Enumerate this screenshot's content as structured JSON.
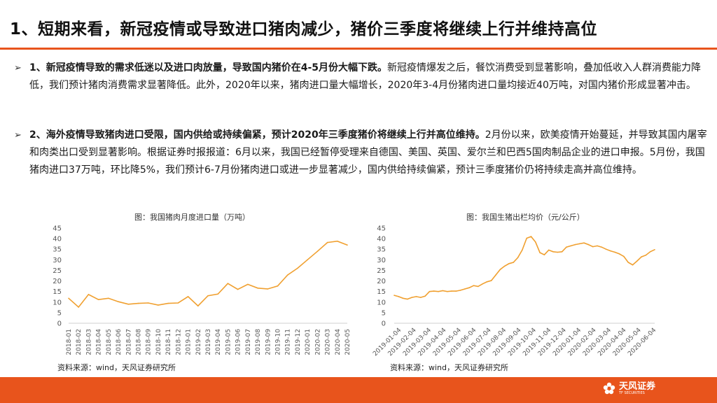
{
  "slide": {
    "title": "1、短期来看，新冠疫情或导致进口猪肉减少，猪价三季度将继续上行并维持高位",
    "bullets": [
      {
        "bold": "1、新冠疫情导致的需求低迷以及进口肉放量，导致国内猪价在4-5月份大幅下跌。",
        "text": "新冠疫情爆发之后，餐饮消费受到显著影响，叠加低收入人群消费能力降低，我们预计猪肉消费需求显著降低。此外，2020年以来，猪肉进口量大幅增长，2020年3-4月份猪肉进口量均接近40万吨，对国内猪价形成显著冲击。"
      },
      {
        "bold": "2、海外疫情导致猪肉进口受限，国内供给或持续偏紧，预计2020年三季度猪价将继续上行并高位维持。",
        "text": "2月份以来，欧美疫情开始蔓延，并导致其国内屠宰和肉类出口受到显著影响。根据证券时报报道：6月以来，我国已经暂停受理来自德国、美国、英国、爱尔兰和巴西5国肉制品企业的进口申报。5月份，我国猪肉进口37万吨，环比降5%，我们预计6-7月份猪肉进口或进一步显著减少，国内供给持续偏紧，预计三季度猪价仍将持续走高并高位维持。"
      }
    ],
    "footer_logo": "天风证券",
    "footer_logo_sub": "TF SECURITIES"
  },
  "accent_color": "#e8541c",
  "chart_data": [
    {
      "type": "line",
      "title": "图：我国猪肉月度进口量（万吨）",
      "source": "资料来源：wind，天风证券研究所",
      "color": "#f0a030",
      "ylim": [
        0,
        45
      ],
      "yticks": [
        0,
        5,
        10,
        15,
        20,
        25,
        30,
        35,
        40,
        45
      ],
      "categories": [
        "2018-01",
        "2018-02",
        "2018-03",
        "2018-04",
        "2018-05",
        "2018-06",
        "2018-07",
        "2018-08",
        "2018-09",
        "2018-10",
        "2018-11",
        "2018-12",
        "2019-01",
        "2019-02",
        "2019-03",
        "2019-04",
        "2019-05",
        "2019-06",
        "2019-07",
        "2019-08",
        "2019-09",
        "2019-10",
        "2019-11",
        "2019-12",
        "2020-01",
        "2020-02",
        "2020-03",
        "2020-04",
        "2020-05"
      ],
      "values": [
        11.8,
        7.6,
        13.6,
        11.2,
        11.8,
        10.2,
        9.0,
        9.4,
        9.6,
        8.6,
        9.4,
        9.6,
        12.6,
        8.2,
        13.0,
        13.8,
        18.8,
        16.0,
        18.4,
        16.6,
        16.2,
        17.6,
        22.8,
        26.0,
        30.0,
        34.0,
        38.2,
        38.8,
        37.0
      ]
    },
    {
      "type": "line",
      "title": "图：我国生猪出栏均价（元/公斤）",
      "source": "资料来源：wind，天风证券研究所",
      "color": "#f0a030",
      "ylim": [
        0,
        45
      ],
      "yticks": [
        0,
        5,
        10,
        15,
        20,
        25,
        30,
        35,
        40,
        45
      ],
      "xticklabels": [
        "2019-01-04",
        "2019-02-04",
        "2019-03-04",
        "2019-04-04",
        "2019-05-04",
        "2019-06-04",
        "2019-07-04",
        "2019-08-04",
        "2019-09-04",
        "2019-10-04",
        "2019-11-04",
        "2019-12-04",
        "2020-01-04",
        "2020-02-04",
        "2020-03-04",
        "2020-04-04",
        "2020-05-04",
        "2020-06-04"
      ],
      "values": [
        13.2,
        12.6,
        11.8,
        11.4,
        12.2,
        12.6,
        12.2,
        12.8,
        15.0,
        15.2,
        15.0,
        15.4,
        15.0,
        15.2,
        15.2,
        15.6,
        16.2,
        16.8,
        17.8,
        17.4,
        18.6,
        19.6,
        20.2,
        22.8,
        25.4,
        27.0,
        28.2,
        28.8,
        31.0,
        34.6,
        40.2,
        41.0,
        38.4,
        33.4,
        32.4,
        34.6,
        33.8,
        33.6,
        33.8,
        36.0,
        36.6,
        37.2,
        37.6,
        38.0,
        37.2,
        36.2,
        36.6,
        36.0,
        35.0,
        34.2,
        33.6,
        32.8,
        31.6,
        28.8,
        27.6,
        29.4,
        31.4,
        32.2,
        33.8,
        34.8
      ]
    }
  ]
}
